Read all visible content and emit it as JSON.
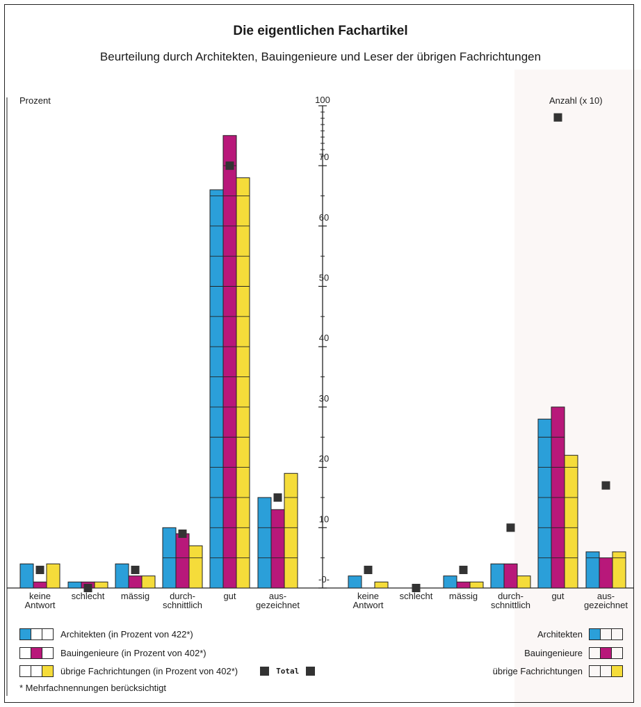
{
  "title": "Die eigentlichen Fachartikel",
  "subtitle": "Beurteilung durch Architekten, Bauingenieure und Leser der übrigen Fachrichtungen",
  "left_axis_label": "Prozent",
  "right_axis_label": "Anzahl (x 10)",
  "axis_ticks": [
    "-0-",
    "10",
    "20",
    "30",
    "40",
    "50",
    "60",
    "70",
    "100"
  ],
  "categories": [
    [
      "keine",
      "Antwort"
    ],
    [
      "schlecht",
      ""
    ],
    [
      "mässig",
      ""
    ],
    [
      "durch-",
      "schnittlich"
    ],
    [
      "gut",
      ""
    ],
    [
      "aus-",
      "gezeichnet"
    ]
  ],
  "colors": {
    "architekten": "#2b9fd9",
    "bauingenieure": "#b8187a",
    "uebrige": "#f5dc3a",
    "total": "#333333"
  },
  "chart_data": [
    {
      "type": "bar",
      "ylabel": "Prozent",
      "categories": [
        "keine Antwort",
        "schlecht",
        "mässig",
        "durchschnittlich",
        "gut",
        "ausgezeichnet"
      ],
      "series": [
        {
          "name": "Architekten",
          "values": [
            4,
            1,
            4,
            10,
            66,
            15
          ]
        },
        {
          "name": "Bauingenieure",
          "values": [
            1,
            1,
            2,
            9,
            75,
            13
          ]
        },
        {
          "name": "übrige Fachrichtungen",
          "values": [
            4,
            1,
            2,
            7,
            68,
            19
          ]
        },
        {
          "name": "Total",
          "values": [
            3,
            0,
            3,
            9,
            70,
            15
          ]
        }
      ]
    },
    {
      "type": "bar",
      "ylabel": "Anzahl (x 10)",
      "categories": [
        "keine Antwort",
        "schlecht",
        "mässig",
        "durchschnittlich",
        "gut",
        "ausgezeichnet"
      ],
      "series": [
        {
          "name": "Architekten",
          "values": [
            2,
            0,
            2,
            4,
            28,
            6
          ]
        },
        {
          "name": "Bauingenieure",
          "values": [
            0,
            0,
            1,
            4,
            30,
            5
          ]
        },
        {
          "name": "übrige Fachrichtungen",
          "values": [
            1,
            0,
            1,
            2,
            22,
            6
          ]
        },
        {
          "name": "Total",
          "values": [
            3,
            0,
            3,
            10,
            78,
            17
          ]
        }
      ]
    }
  ],
  "legend_left": [
    {
      "label": "Architekten (in Prozent von 422*)"
    },
    {
      "label": "Bauingenieure (in Prozent von 402*)"
    },
    {
      "label": "übrige Fachrichtungen (in Prozent von 402*)"
    }
  ],
  "legend_right": [
    {
      "label": "Architekten"
    },
    {
      "label": "Bauingenieure"
    },
    {
      "label": "übrige Fachrichtungen"
    }
  ],
  "total_label": "Total",
  "footnote": "* Mehrfachnennungen berücksichtigt"
}
